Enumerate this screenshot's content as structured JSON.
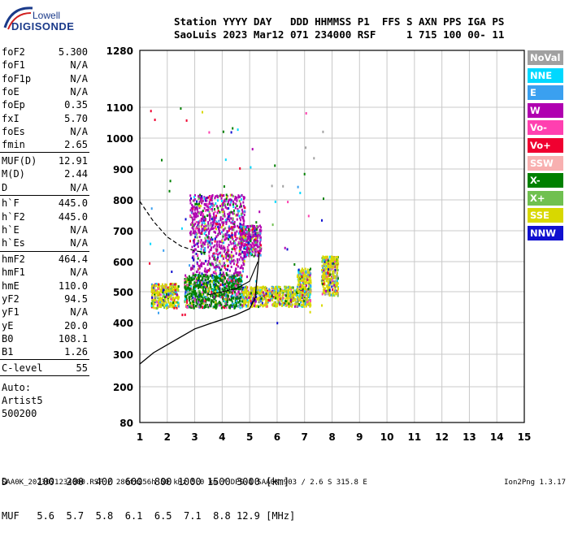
{
  "logo": {
    "top_text": "Lowell",
    "bottom_text": "DIGISONDE"
  },
  "header": {
    "line1": "Station YYYY DAY   DDD HHMMSS P1  FFS S AXN PPS IGA PS",
    "line2": "SaoLuis 2023 Mar12 071 234000 RSF     1 715 100 00- 11"
  },
  "params": {
    "group1": [
      {
        "name": "foF2",
        "value": "5.300"
      },
      {
        "name": "foF1",
        "value": "N/A"
      },
      {
        "name": "foF1p",
        "value": "N/A"
      },
      {
        "name": "foE",
        "value": "N/A"
      },
      {
        "name": "foEp",
        "value": "0.35"
      },
      {
        "name": "fxI",
        "value": "5.70"
      },
      {
        "name": "foEs",
        "value": "N/A"
      },
      {
        "name": "fmin",
        "value": "2.65"
      }
    ],
    "group2": [
      {
        "name": "MUF(D)",
        "value": "12.91"
      },
      {
        "name": "M(D)",
        "value": "2.44"
      },
      {
        "name": "D",
        "value": "N/A"
      }
    ],
    "group3": [
      {
        "name": "h`F",
        "value": "445.0"
      },
      {
        "name": "h`F2",
        "value": "445.0"
      },
      {
        "name": "h`E",
        "value": "N/A"
      },
      {
        "name": "h`Es",
        "value": "N/A"
      }
    ],
    "group4": [
      {
        "name": "hmF2",
        "value": "464.4"
      },
      {
        "name": "hmF1",
        "value": "N/A"
      },
      {
        "name": "hmE",
        "value": "110.0"
      },
      {
        "name": "yF2",
        "value": "94.5"
      },
      {
        "name": "yF1",
        "value": "N/A"
      },
      {
        "name": "yE",
        "value": "20.0"
      },
      {
        "name": "B0",
        "value": "108.1"
      },
      {
        "name": "B1",
        "value": "1.26"
      }
    ],
    "group5": [
      {
        "name": "C-level",
        "value": "55"
      }
    ],
    "auto_label": "Auto:",
    "auto_name": "Artist5",
    "auto_code": "500200"
  },
  "legend": [
    {
      "label": "NoVal",
      "color": "#a0a0a0"
    },
    {
      "label": "NNE",
      "color": "#00d8ff"
    },
    {
      "label": "E",
      "color": "#3aa0f0"
    },
    {
      "label": "W",
      "color": "#b000b0"
    },
    {
      "label": "Vo-",
      "color": "#ff40b0"
    },
    {
      "label": "Vo+",
      "color": "#f00030"
    },
    {
      "label": "SSW",
      "color": "#f8b0b0"
    },
    {
      "label": "X-",
      "color": "#008000"
    },
    {
      "label": "X+",
      "color": "#70c050"
    },
    {
      "label": "SSE",
      "color": "#d8d800"
    },
    {
      "label": "NNW",
      "color": "#1010d0"
    }
  ],
  "bottom_table": {
    "row1": "D     100  200  400  600  800 1000 1500 3000 [km]",
    "row2": "MUF   5.6  5.7  5.8  6.1  6.5  7.1  8.8 12.9 [MHz]"
  },
  "footer": {
    "left": "SAA0K_2023071234000.RSF / 280fx256h 50 kHz 5.0 km / DPS-4 SAA0K 903 / 2.6 S 315.8 E",
    "right": "Ion2Png 1.3.17"
  },
  "chart_data": {
    "type": "scatter",
    "xlim": [
      1,
      15
    ],
    "ylim": [
      80,
      1280
    ],
    "y_scale": "nonlinear (ionogram height axis)",
    "x_ticks": [
      1,
      2,
      3,
      4,
      5,
      6,
      7,
      8,
      9,
      10,
      11,
      12,
      13,
      14,
      15
    ],
    "y_ticks": [
      80,
      200,
      300,
      400,
      500,
      600,
      700,
      800,
      900,
      1000,
      1100,
      1280
    ],
    "grid": true,
    "virtual_height_trace": [
      {
        "x": 1.0,
        "y": 270
      },
      {
        "x": 1.5,
        "y": 305
      },
      {
        "x": 2.0,
        "y": 330
      },
      {
        "x": 2.5,
        "y": 355
      },
      {
        "x": 3.0,
        "y": 380
      },
      {
        "x": 3.5,
        "y": 395
      },
      {
        "x": 4.0,
        "y": 410
      },
      {
        "x": 4.5,
        "y": 425
      },
      {
        "x": 5.0,
        "y": 445
      },
      {
        "x": 5.2,
        "y": 480
      },
      {
        "x": 5.3,
        "y": 580
      },
      {
        "x": 5.35,
        "y": 630
      }
    ],
    "ox_trace": [
      {
        "x": 3.5,
        "y": 490
      },
      {
        "x": 4.0,
        "y": 500
      },
      {
        "x": 4.5,
        "y": 510
      },
      {
        "x": 5.0,
        "y": 535
      },
      {
        "x": 5.3,
        "y": 600
      }
    ],
    "muf_dashed": [
      {
        "x": 1.0,
        "y": 795
      },
      {
        "x": 1.5,
        "y": 730
      },
      {
        "x": 2.0,
        "y": 680
      },
      {
        "x": 2.5,
        "y": 650
      },
      {
        "x": 3.0,
        "y": 635
      },
      {
        "x": 3.4,
        "y": 630
      }
    ],
    "echo_clusters": [
      {
        "x_range": [
          1.4,
          2.4
        ],
        "y_range": [
          450,
          530
        ],
        "dominant": "SSE"
      },
      {
        "x_range": [
          2.6,
          4.7
        ],
        "y_range": [
          450,
          560
        ],
        "dominant": "X-"
      },
      {
        "x_range": [
          2.8,
          4.8
        ],
        "y_range": [
          560,
          820
        ],
        "dominant": "W"
      },
      {
        "x_range": [
          4.7,
          7.2
        ],
        "y_range": [
          455,
          520
        ],
        "dominant": "SSE"
      },
      {
        "x_range": [
          6.7,
          7.2
        ],
        "y_range": [
          500,
          580
        ],
        "dominant": "SSE"
      },
      {
        "x_range": [
          7.6,
          8.2
        ],
        "y_range": [
          490,
          620
        ],
        "dominant": "SSE"
      },
      {
        "x_range": [
          4.6,
          5.4
        ],
        "y_range": [
          620,
          720
        ],
        "dominant": "W"
      }
    ]
  }
}
